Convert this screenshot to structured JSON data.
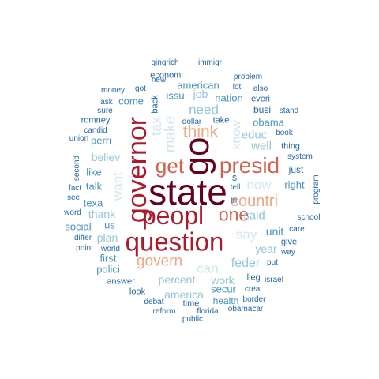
{
  "title": "word cloud",
  "palette": {
    "c1": "#67001f",
    "c2": "#b2182b",
    "c3": "#d6604d",
    "c4": "#f4a582",
    "c5": "#fddbc7",
    "c6": "#d1e5f0",
    "c7": "#92c5de",
    "c8": "#4393c3",
    "c9": "#2166ac"
  },
  "words": [
    {
      "text": "state",
      "weight": 1.0,
      "color": "#67001f",
      "vertical": false
    },
    {
      "text": "go",
      "weight": 0.95,
      "color": "#67001f",
      "vertical": true
    },
    {
      "text": "governor",
      "weight": 0.9,
      "color": "#b2182b",
      "vertical": true
    },
    {
      "text": "question",
      "weight": 0.88,
      "color": "#b2182b",
      "vertical": false
    },
    {
      "text": "peopl",
      "weight": 0.82,
      "color": "#b2182b",
      "vertical": false
    },
    {
      "text": "presid",
      "weight": 0.78,
      "color": "#d6604d",
      "vertical": false
    },
    {
      "text": "get",
      "weight": 0.72,
      "color": "#d6604d",
      "vertical": false
    },
    {
      "text": "one",
      "weight": 0.7,
      "color": "#d6604d",
      "vertical": false
    },
    {
      "text": "think",
      "weight": 0.62,
      "color": "#f4a582",
      "vertical": false
    },
    {
      "text": "countri",
      "weight": 0.6,
      "color": "#f4a582",
      "vertical": false
    },
    {
      "text": "govern",
      "weight": 0.58,
      "color": "#f4a582",
      "vertical": false
    },
    {
      "text": "make",
      "weight": 0.55,
      "color": "#d1e5f0",
      "vertical": true
    },
    {
      "text": "tax",
      "weight": 0.5,
      "color": "#d1e5f0",
      "vertical": true
    },
    {
      "text": "know",
      "weight": 0.5,
      "color": "#d1e5f0",
      "vertical": true
    },
    {
      "text": "now",
      "weight": 0.52,
      "color": "#d1e5f0",
      "vertical": false
    },
    {
      "text": "say",
      "weight": 0.52,
      "color": "#d1e5f0",
      "vertical": false
    },
    {
      "text": "can",
      "weight": 0.5,
      "color": "#d1e5f0",
      "vertical": false
    },
    {
      "text": "want",
      "weight": 0.5,
      "color": "#d1e5f0",
      "vertical": true
    },
    {
      "text": "need",
      "weight": 0.5,
      "color": "#92c5de",
      "vertical": false
    },
    {
      "text": "feder",
      "weight": 0.48,
      "color": "#92c5de",
      "vertical": false
    },
    {
      "text": "educ",
      "weight": 0.46,
      "color": "#92c5de",
      "vertical": false
    },
    {
      "text": "well",
      "weight": 0.46,
      "color": "#92c5de",
      "vertical": false
    },
    {
      "text": "said",
      "weight": 0.44,
      "color": "#92c5de",
      "vertical": false
    },
    {
      "text": "year",
      "weight": 0.44,
      "color": "#92c5de",
      "vertical": false
    },
    {
      "text": "believ",
      "weight": 0.44,
      "color": "#92c5de",
      "vertical": false
    },
    {
      "text": "thank",
      "weight": 0.42,
      "color": "#92c5de",
      "vertical": false
    },
    {
      "text": "percent",
      "weight": 0.42,
      "color": "#92c5de",
      "vertical": false
    },
    {
      "text": "america",
      "weight": 0.42,
      "color": "#92c5de",
      "vertical": false
    },
    {
      "text": "work",
      "weight": 0.42,
      "color": "#92c5de",
      "vertical": false
    },
    {
      "text": "plan",
      "weight": 0.4,
      "color": "#92c5de",
      "vertical": false
    },
    {
      "text": "unit",
      "weight": 0.38,
      "color": "#4393c3",
      "vertical": false
    },
    {
      "text": "job",
      "weight": 0.38,
      "color": "#92c5de",
      "vertical": false
    },
    {
      "text": "right",
      "weight": 0.36,
      "color": "#4393c3",
      "vertical": false
    },
    {
      "text": "nation",
      "weight": 0.36,
      "color": "#4393c3",
      "vertical": false
    },
    {
      "text": "obama",
      "weight": 0.36,
      "color": "#4393c3",
      "vertical": false
    },
    {
      "text": "issu",
      "weight": 0.36,
      "color": "#4393c3",
      "vertical": false
    },
    {
      "text": "american",
      "weight": 0.36,
      "color": "#4393c3",
      "vertical": false
    },
    {
      "text": "come",
      "weight": 0.34,
      "color": "#4393c3",
      "vertical": false
    },
    {
      "text": "perri",
      "weight": 0.34,
      "color": "#4393c3",
      "vertical": false
    },
    {
      "text": "like",
      "weight": 0.34,
      "color": "#4393c3",
      "vertical": false
    },
    {
      "text": "talk",
      "weight": 0.34,
      "color": "#4393c3",
      "vertical": false
    },
    {
      "text": "texa",
      "weight": 0.34,
      "color": "#4393c3",
      "vertical": false
    },
    {
      "text": "us",
      "weight": 0.34,
      "color": "#4393c3",
      "vertical": false
    },
    {
      "text": "social",
      "weight": 0.32,
      "color": "#4393c3",
      "vertical": false
    },
    {
      "text": "first",
      "weight": 0.32,
      "color": "#4393c3",
      "vertical": false
    },
    {
      "text": "polici",
      "weight": 0.32,
      "color": "#4393c3",
      "vertical": false
    },
    {
      "text": "secur",
      "weight": 0.32,
      "color": "#4393c3",
      "vertical": false
    },
    {
      "text": "health",
      "weight": 0.32,
      "color": "#4393c3",
      "vertical": false
    },
    {
      "text": "busi",
      "weight": 0.32,
      "color": "#2166ac",
      "vertical": false
    },
    {
      "text": "just",
      "weight": 0.3,
      "color": "#2166ac",
      "vertical": false
    },
    {
      "text": "thing",
      "weight": 0.28,
      "color": "#2166ac",
      "vertical": false
    },
    {
      "text": "economi",
      "weight": 0.28,
      "color": "#2166ac",
      "vertical": false
    },
    {
      "text": "answer",
      "weight": 0.28,
      "color": "#2166ac",
      "vertical": false
    },
    {
      "text": "look",
      "weight": 0.28,
      "color": "#2166ac",
      "vertical": false
    },
    {
      "text": "time",
      "weight": 0.28,
      "color": "#2166ac",
      "vertical": false
    },
    {
      "text": "illeg",
      "weight": 0.28,
      "color": "#2166ac",
      "vertical": false
    },
    {
      "text": "give",
      "weight": 0.28,
      "color": "#2166ac",
      "vertical": false
    },
    {
      "text": "romney",
      "weight": 0.26,
      "color": "#2166ac",
      "vertical": false
    },
    {
      "text": "back",
      "weight": 0.26,
      "color": "#2166ac",
      "vertical": true
    },
    {
      "text": "everi",
      "weight": 0.26,
      "color": "#2166ac",
      "vertical": false
    },
    {
      "text": "take",
      "weight": 0.26,
      "color": "#2166ac",
      "vertical": false
    },
    {
      "text": "money",
      "weight": 0.26,
      "color": "#2166ac",
      "vertical": false
    },
    {
      "text": "got",
      "weight": 0.26,
      "color": "#2166ac",
      "vertical": false
    },
    {
      "text": "lot",
      "weight": 0.26,
      "color": "#2166ac",
      "vertical": false
    },
    {
      "text": "new",
      "weight": 0.24,
      "color": "#2166ac",
      "vertical": false
    },
    {
      "text": "also",
      "weight": 0.24,
      "color": "#2166ac",
      "vertical": false
    },
    {
      "text": "problem",
      "weight": 0.24,
      "color": "#2166ac",
      "vertical": false
    },
    {
      "text": "ask",
      "weight": 0.24,
      "color": "#2166ac",
      "vertical": false
    },
    {
      "text": "sure",
      "weight": 0.24,
      "color": "#2166ac",
      "vertical": false
    },
    {
      "text": "stand",
      "weight": 0.24,
      "color": "#2166ac",
      "vertical": false
    },
    {
      "text": "book",
      "weight": 0.24,
      "color": "#2166ac",
      "vertical": false
    },
    {
      "text": "candid",
      "weight": 0.24,
      "color": "#2166ac",
      "vertical": false
    },
    {
      "text": "union",
      "weight": 0.24,
      "color": "#2166ac",
      "vertical": false
    },
    {
      "text": "dollar",
      "weight": 0.24,
      "color": "#2166ac",
      "vertical": false
    },
    {
      "text": "system",
      "weight": 0.24,
      "color": "#2166ac",
      "vertical": false
    },
    {
      "text": "second",
      "weight": 0.24,
      "color": "#2166ac",
      "vertical": true
    },
    {
      "text": "fact",
      "weight": 0.24,
      "color": "#2166ac",
      "vertical": false
    },
    {
      "text": "see",
      "weight": 0.24,
      "color": "#2166ac",
      "vertical": false
    },
    {
      "text": "word",
      "weight": 0.24,
      "color": "#2166ac",
      "vertical": false
    },
    {
      "text": "differ",
      "weight": 0.24,
      "color": "#2166ac",
      "vertical": false
    },
    {
      "text": "point",
      "weight": 0.24,
      "color": "#2166ac",
      "vertical": false
    },
    {
      "text": "world",
      "weight": 0.24,
      "color": "#2166ac",
      "vertical": false
    },
    {
      "text": "care",
      "weight": 0.24,
      "color": "#2166ac",
      "vertical": false
    },
    {
      "text": "school",
      "weight": 0.24,
      "color": "#2166ac",
      "vertical": false
    },
    {
      "text": "way",
      "weight": 0.24,
      "color": "#2166ac",
      "vertical": false
    },
    {
      "text": "put",
      "weight": 0.24,
      "color": "#2166ac",
      "vertical": false
    },
    {
      "text": "program",
      "weight": 0.24,
      "color": "#2166ac",
      "vertical": true
    },
    {
      "text": "tell",
      "weight": 0.24,
      "color": "#2166ac",
      "vertical": false
    },
    {
      "text": "$",
      "weight": 0.24,
      "color": "#2166ac",
      "vertical": false
    },
    {
      "text": "tri",
      "weight": 0.24,
      "color": "#2166ac",
      "vertical": false
    },
    {
      "text": "israel",
      "weight": 0.24,
      "color": "#2166ac",
      "vertical": false
    },
    {
      "text": "creat",
      "weight": 0.24,
      "color": "#2166ac",
      "vertical": false
    },
    {
      "text": "border",
      "weight": 0.24,
      "color": "#2166ac",
      "vertical": false
    },
    {
      "text": "debat",
      "weight": 0.24,
      "color": "#2166ac",
      "vertical": false
    },
    {
      "text": "reform",
      "weight": 0.24,
      "color": "#2166ac",
      "vertical": false
    },
    {
      "text": "florida",
      "weight": 0.24,
      "color": "#2166ac",
      "vertical": false
    },
    {
      "text": "obamacar",
      "weight": 0.24,
      "color": "#2166ac",
      "vertical": false
    },
    {
      "text": "public",
      "weight": 0.24,
      "color": "#2166ac",
      "vertical": false
    },
    {
      "text": "gingrich",
      "weight": 0.24,
      "color": "#2166ac",
      "vertical": false
    },
    {
      "text": "immigr",
      "weight": 0.24,
      "color": "#2166ac",
      "vertical": false
    }
  ]
}
